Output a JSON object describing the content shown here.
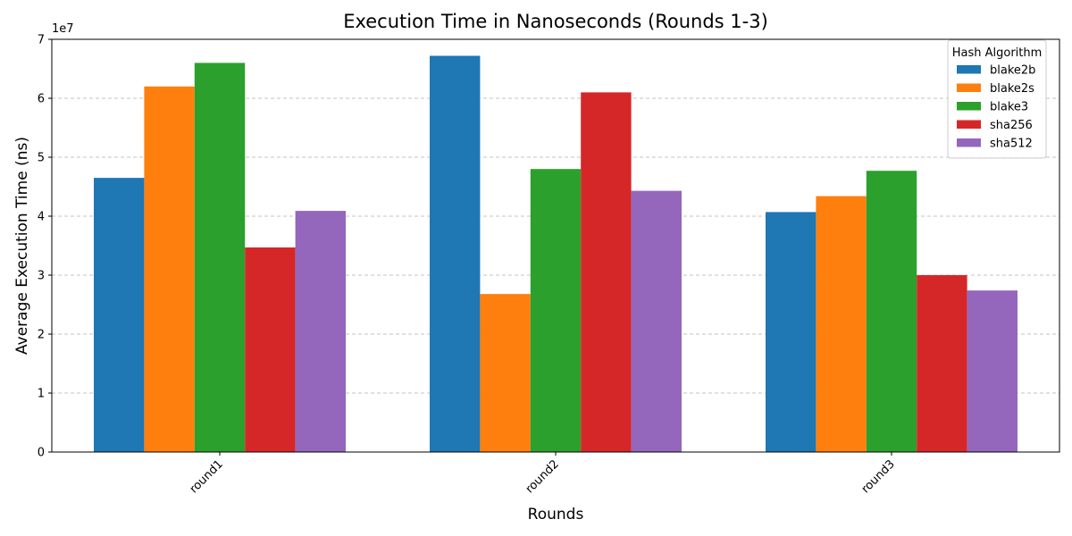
{
  "chart_data": {
    "type": "bar",
    "title": "Execution Time in Nanoseconds (Rounds 1-3)",
    "xlabel": "Rounds",
    "ylabel": "Average Execution Time (ns)",
    "y_offset_label": "1e7",
    "categories": [
      "round1",
      "round2",
      "round3"
    ],
    "ylim": [
      0,
      70000000
    ],
    "yticks": [
      0,
      10000000,
      20000000,
      30000000,
      40000000,
      50000000,
      60000000,
      70000000
    ],
    "ytick_labels": [
      "0",
      "1",
      "2",
      "3",
      "4",
      "5",
      "6",
      "7"
    ],
    "grid": true,
    "legend": {
      "title": "Hash Algorithm",
      "placement": "top-right"
    },
    "series": [
      {
        "name": "blake2b",
        "color": "#1f77b4",
        "values": [
          46500000,
          67200000,
          40700000
        ]
      },
      {
        "name": "blake2s",
        "color": "#ff7f0e",
        "values": [
          62000000,
          26800000,
          43400000
        ]
      },
      {
        "name": "blake3",
        "color": "#2ca02c",
        "values": [
          66000000,
          48000000,
          47700000
        ]
      },
      {
        "name": "sha256",
        "color": "#d62728",
        "values": [
          34700000,
          61000000,
          30000000
        ]
      },
      {
        "name": "sha512",
        "color": "#9467bd",
        "values": [
          40900000,
          44300000,
          27400000
        ]
      }
    ]
  }
}
